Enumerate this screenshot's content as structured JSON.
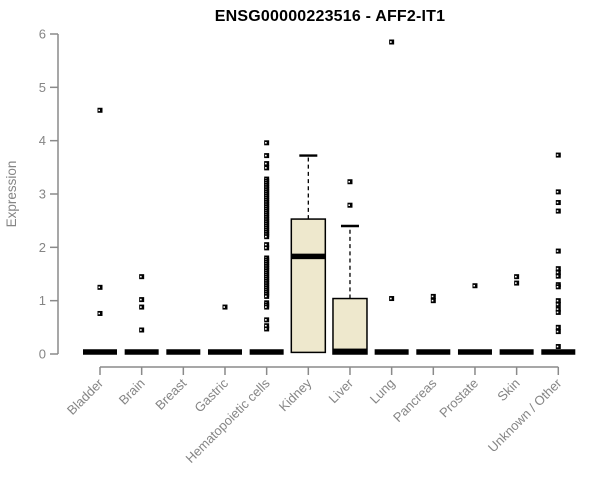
{
  "chart_data": {
    "type": "boxplot",
    "title": "ENSG00000223516 - AFF2-IT1",
    "ylabel": "Expression",
    "xlabel": "",
    "ylim": [
      0,
      6
    ],
    "yticks": [
      0,
      1,
      2,
      3,
      4,
      5,
      6
    ],
    "grid": false,
    "legend": "none",
    "categories": [
      "Bladder",
      "Brain",
      "Breast",
      "Gastric",
      "Hematopoietic cells",
      "Kidney",
      "Liver",
      "Lung",
      "Pancreas",
      "Prostate",
      "Skin",
      "Unknown / Other"
    ],
    "boxes": [
      {
        "category": "Bladder",
        "q1": 0,
        "median": 0,
        "q3": 0,
        "whisker_low": 0,
        "whisker_high": 0,
        "outliers": [
          4.57,
          1.25,
          0.76
        ]
      },
      {
        "category": "Brain",
        "q1": 0,
        "median": 0,
        "q3": 0,
        "whisker_low": 0,
        "whisker_high": 0,
        "outliers": [
          1.45,
          1.02,
          0.88,
          0.45
        ]
      },
      {
        "category": "Breast",
        "q1": 0,
        "median": 0,
        "q3": 0,
        "whisker_low": 0,
        "whisker_high": 0,
        "outliers": []
      },
      {
        "category": "Gastric",
        "q1": 0,
        "median": 0,
        "q3": 0,
        "whisker_low": 0,
        "whisker_high": 0,
        "outliers": [
          0.88
        ]
      },
      {
        "category": "Hematopoietic cells",
        "q1": 0,
        "median": 0,
        "q3": 0,
        "whisker_low": 0,
        "whisker_high": 0,
        "outliers": [
          3.96,
          3.72,
          3.57,
          3.49,
          3.28,
          3.24,
          3.2,
          3.16,
          3.12,
          3.08,
          3.04,
          3.0,
          2.96,
          2.92,
          2.88,
          2.84,
          2.8,
          2.76,
          2.72,
          2.68,
          2.64,
          2.6,
          2.56,
          2.52,
          2.48,
          2.44,
          2.4,
          2.36,
          2.32,
          2.28,
          2.24,
          2.2,
          2.05,
          1.99,
          1.8,
          1.76,
          1.72,
          1.68,
          1.64,
          1.6,
          1.56,
          1.52,
          1.48,
          1.44,
          1.4,
          1.36,
          1.32,
          1.28,
          1.24,
          1.2,
          1.16,
          1.12,
          1.08,
          0.96,
          0.92,
          0.88,
          0.64,
          0.53,
          0.47
        ]
      },
      {
        "category": "Kidney",
        "q1": 0.03,
        "median": 1.83,
        "q3": 2.53,
        "whisker_low": 0,
        "whisker_high": 3.72,
        "outliers": []
      },
      {
        "category": "Liver",
        "q1": 0,
        "median": 0.05,
        "q3": 1.04,
        "whisker_low": 0,
        "whisker_high": 2.4,
        "outliers": [
          3.23,
          2.79
        ]
      },
      {
        "category": "Lung",
        "q1": 0,
        "median": 0,
        "q3": 0,
        "whisker_low": 0,
        "whisker_high": 0,
        "outliers": [
          5.85,
          1.04
        ]
      },
      {
        "category": "Pancreas",
        "q1": 0,
        "median": 0,
        "q3": 0,
        "whisker_low": 0,
        "whisker_high": 0,
        "outliers": [
          1.08,
          1.0
        ]
      },
      {
        "category": "Prostate",
        "q1": 0,
        "median": 0,
        "q3": 0,
        "whisker_low": 0,
        "whisker_high": 0,
        "outliers": [
          1.28
        ]
      },
      {
        "category": "Skin",
        "q1": 0,
        "median": 0,
        "q3": 0,
        "whisker_low": 0,
        "whisker_high": 0,
        "outliers": [
          1.45,
          1.33
        ]
      },
      {
        "category": "Unknown / Other",
        "q1": 0,
        "median": 0,
        "q3": 0,
        "whisker_low": 0,
        "whisker_high": 0,
        "outliers": [
          3.73,
          3.04,
          2.84,
          2.68,
          1.93,
          1.6,
          1.53,
          1.46,
          1.3,
          1.26,
          1.0,
          0.93,
          0.84,
          0.78,
          0.5,
          0.42,
          0.14
        ]
      }
    ],
    "colors": {
      "box_fill": "#EEE8CD",
      "box_border": "#000000",
      "median": "#000000",
      "points": "#000000",
      "axis": "#8A8A8A",
      "axis_text": "#858585",
      "title": "#000000",
      "background": "#FFFFFF"
    }
  }
}
